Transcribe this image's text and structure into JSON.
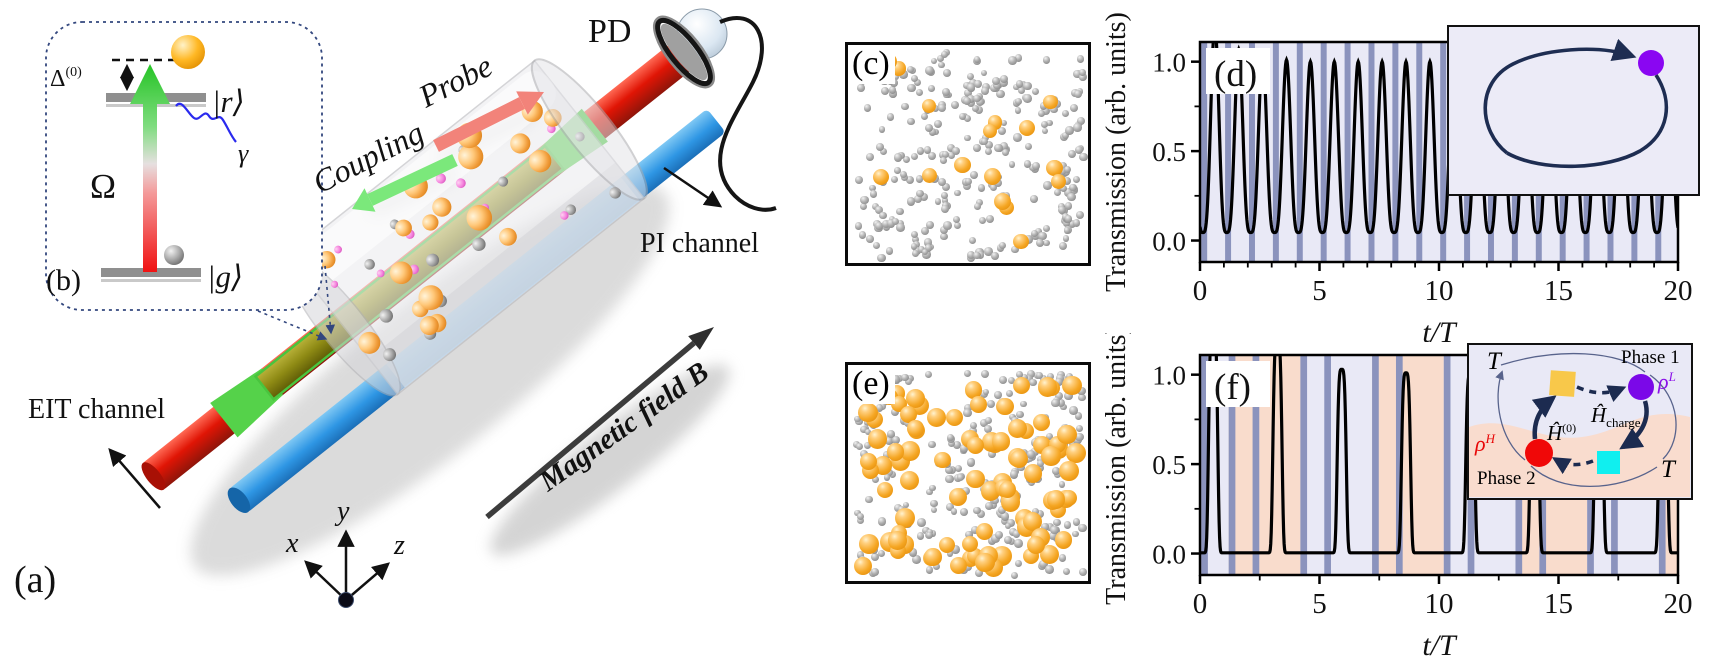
{
  "panel_a": {
    "label": "(a)",
    "pd_label": "PD",
    "probe_label": "Probe",
    "coupling_label": "Coupling",
    "pi_channel_label": "PI channel",
    "eit_channel_label": "EIT channel",
    "magnetic_field_label": "Magnetic field B",
    "axes": {
      "x": "x",
      "y": "y",
      "z": "z"
    },
    "colors": {
      "probe_beam": "#e01505",
      "coupling_cone": "#49c43e",
      "eit_overlap_beam": "#8e8a14",
      "pi_beam": "#2e96e4",
      "probe_arrow": "#f2837a",
      "coupling_arrow": "#7be87b",
      "magnetic_arrow": "#3c3c3c"
    },
    "cell_spheres": {
      "orange": 18,
      "gray": 13,
      "pink": 11,
      "seed": 5
    }
  },
  "panel_b": {
    "label": "(b)",
    "delta": {
      "base": "Δ",
      "sup": "(0)"
    },
    "omega": "Ω",
    "gamma": "γ",
    "state_r": "|r⟩",
    "state_g": "|g⟩",
    "omega_color": "#15b315",
    "gamma_color": "#2a2aee"
  },
  "panel_c": {
    "label": "(c)",
    "gray_atoms": 310,
    "orange_atoms": 16,
    "seed": 7
  },
  "panel_e": {
    "label": "(e)",
    "gray_atoms": 272,
    "orange_atoms": 88,
    "seed": 11
  },
  "chart_data": [
    {
      "panel": "(d)",
      "type": "line",
      "title": "",
      "xlabel": "t/T",
      "ylabel": "Transmission (arb. units)",
      "xlim": [
        0,
        20
      ],
      "ylim": [
        -0.12,
        1.11
      ],
      "xticks": [
        0,
        5,
        10,
        15,
        20
      ],
      "x_minor": [
        1,
        2,
        3,
        4,
        6,
        7,
        8,
        9,
        11,
        12,
        13,
        14,
        16,
        17,
        18,
        19
      ],
      "ytick_values": [
        0,
        0.5,
        1
      ],
      "ytick_labels": [
        "0.0",
        "0.5",
        "1.0"
      ],
      "y_minor": [
        0.25,
        0.75
      ],
      "line_color": "#000000",
      "bg_color": "#e9e9f6",
      "stripe_color": "#8b93bd",
      "stripe_width": 0.25,
      "stripes": [
        0.05,
        1.05,
        2.05,
        3.05,
        4.05,
        5.05,
        6.05,
        7.05,
        8.05,
        9.05,
        10.05,
        11.05,
        12.05,
        13.05,
        14.05,
        15.05,
        16.05,
        17.05,
        18.05,
        19.05
      ],
      "pink_bands": [],
      "pink_color": "#f9dccc",
      "waveform": {
        "kind": "periodic_broad",
        "y_min": 0.045,
        "shape_power": 1.8,
        "peak_x": [
          0.62,
          1.62,
          2.62,
          3.62,
          4.62,
          5.62,
          6.62,
          7.62,
          8.62,
          9.62,
          10.62,
          11.62,
          12.62,
          13.62,
          14.62,
          15.62,
          16.62,
          17.62,
          18.62,
          19.62
        ],
        "peak_heights": [
          1.2,
          1.07,
          1.03,
          1.01,
          1,
          1,
          1,
          1,
          1,
          1,
          1,
          1,
          1,
          1,
          1,
          1,
          1,
          1,
          1,
          1
        ]
      }
    },
    {
      "panel": "(f)",
      "type": "line",
      "title": "",
      "xlabel": "t/T",
      "ylabel": "Transmission (arb. units)",
      "xlim": [
        0,
        20
      ],
      "ylim": [
        -0.12,
        1.11
      ],
      "xticks": [
        0,
        5,
        10,
        15,
        20
      ],
      "x_minor": [
        2.5,
        7.5,
        12.5,
        17.5
      ],
      "ytick_values": [
        0,
        0.5,
        1
      ],
      "ytick_labels": [
        "0.0",
        "0.5",
        "1.0"
      ],
      "y_minor": [
        0.25,
        0.75
      ],
      "line_color": "#000000",
      "bg_color": "#e9e9f6",
      "stripe_color": "#8b93bd",
      "stripe_width": 0.28,
      "stripes": [
        0.05,
        1.2,
        2.2,
        4.2,
        5.2,
        7.2,
        8.2,
        10.2,
        11.2,
        13.2,
        14.2,
        16.2,
        17.2,
        19.2
      ],
      "pink_bands": [
        [
          1.2,
          4.2
        ],
        [
          7.2,
          10.2
        ],
        [
          13.2,
          16.2
        ],
        [
          19.2,
          20
        ]
      ],
      "pink_color": "#f9dccc",
      "waveform": {
        "kind": "sharp_peaks",
        "y_min": 0.004,
        "sigma": 0.21,
        "peak_x": [
          0.55,
          3.24,
          5.93,
          8.62,
          11.31,
          14.0,
          16.69,
          19.38
        ],
        "peak_heights": [
          1.3,
          1.2,
          1.03,
          1.01,
          1.0,
          1.0,
          1.02,
          1.0
        ]
      }
    }
  ],
  "inset_d": {
    "bg": "#ecebf7",
    "loop_color": "#1e2d52",
    "dot_color": "#8a06f2"
  },
  "inset_f": {
    "t_top": "T",
    "t_bottom": "T",
    "phase1": "Phase 1",
    "phase2": "Phase 2",
    "rho_L": {
      "base": "ρ",
      "sup": "L"
    },
    "rho_H": {
      "base": "ρ",
      "sup": "H"
    },
    "h_charge": {
      "base": "Ĥ",
      "sub": "charge"
    },
    "h_0": {
      "base": "Ĥ",
      "sup": "(0)"
    },
    "colors": {
      "bg_top": "#e9e9f6",
      "bg_bottom": "#f9dcce",
      "arrow": "#1c2b50",
      "yellow_square": "#f8c84a",
      "cyan_square": "#10efef",
      "purple_circle": "#7b08e8",
      "red_circle": "#f00808",
      "rho_L_color": "#8a10e8",
      "rho_H_color": "#e80808"
    }
  }
}
